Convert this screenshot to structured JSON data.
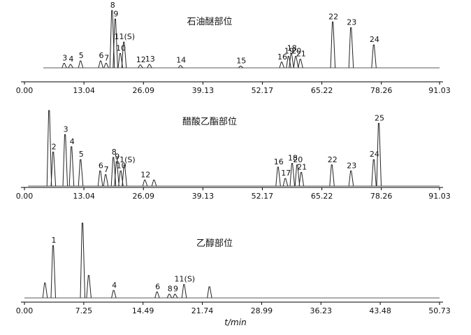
{
  "chart_data": [
    {
      "type": "chromatogram",
      "title": "石油醚部位",
      "xlim": [
        0,
        91.03
      ],
      "xticks": [
        {
          "value": 0,
          "label": "0.00"
        },
        13.04,
        26.09,
        39.13,
        52.17,
        65.22,
        78.26,
        91.03
      ],
      "color": "#222",
      "peaks": [
        {
          "label": "3",
          "x": 8.7,
          "height": 8
        },
        {
          "label": "4",
          "x": 10.1,
          "height": 6
        },
        {
          "label": "5",
          "x": 12.3,
          "height": 12
        },
        {
          "label": "6",
          "x": 16.7,
          "height": 12
        },
        {
          "label": "7",
          "x": 17.9,
          "height": 8
        },
        {
          "label": "8",
          "x": 19.2,
          "height": 100
        },
        {
          "label": "9",
          "x": 19.9,
          "height": 85
        },
        {
          "label": "10",
          "x": 21.0,
          "height": 25
        },
        {
          "label": "11(S)",
          "x": 21.8,
          "height": 45
        },
        {
          "label": "12",
          "x": 25.4,
          "height": 5
        },
        {
          "label": "13",
          "x": 27.4,
          "height": 6
        },
        {
          "label": "14",
          "x": 34.2,
          "height": 4
        },
        {
          "label": "15",
          "x": 47.4,
          "height": 3
        },
        {
          "label": "16",
          "x": 56.4,
          "height": 10
        },
        {
          "label": "19",
          "x": 57.9,
          "height": 20
        },
        {
          "label": "18",
          "x": 58.5,
          "height": 25
        },
        {
          "label": "20",
          "x": 59.5,
          "height": 20
        },
        {
          "label": "21",
          "x": 60.5,
          "height": 15
        },
        {
          "label": "22",
          "x": 67.6,
          "height": 80
        },
        {
          "label": "23",
          "x": 71.6,
          "height": 70
        },
        {
          "label": "24",
          "x": 76.6,
          "height": 40
        }
      ]
    },
    {
      "type": "chromatogram",
      "title": "醋酸乙酯部位",
      "xlim": [
        0,
        91.03
      ],
      "xticks": [
        {
          "value": 0,
          "label": "0.00"
        },
        13.04,
        26.09,
        39.13,
        52.17,
        65.22,
        78.26,
        91.03
      ],
      "color": "#222",
      "peaks": [
        {
          "label": null,
          "x": 5.4,
          "height": 100
        },
        {
          "label": "2",
          "x": 6.3,
          "height": 45
        },
        {
          "label": "3",
          "x": 8.9,
          "height": 68
        },
        {
          "label": "4",
          "x": 10.3,
          "height": 52
        },
        {
          "label": "5",
          "x": 12.3,
          "height": 35
        },
        {
          "label": "6",
          "x": 16.6,
          "height": 20
        },
        {
          "label": "7",
          "x": 17.8,
          "height": 15
        },
        {
          "label": "8",
          "x": 19.5,
          "height": 38
        },
        {
          "label": "9",
          "x": 20.2,
          "height": 32
        },
        {
          "label": "10",
          "x": 21.1,
          "height": 20
        },
        {
          "label": "11(S)",
          "x": 21.9,
          "height": 28
        },
        {
          "label": "12",
          "x": 26.4,
          "height": 8
        },
        {
          "label": null,
          "x": 28.4,
          "height": 8
        },
        {
          "label": "16",
          "x": 55.6,
          "height": 25
        },
        {
          "label": "17",
          "x": 57.2,
          "height": 10
        },
        {
          "label": "18",
          "x": 58.7,
          "height": 30
        },
        {
          "label": "20",
          "x": 59.8,
          "height": 28
        },
        {
          "label": "21",
          "x": 60.7,
          "height": 18
        },
        {
          "label": "22",
          "x": 67.4,
          "height": 28
        },
        {
          "label": "23",
          "x": 71.6,
          "height": 20
        },
        {
          "label": "24",
          "x": 76.6,
          "height": 35
        },
        {
          "label": "25",
          "x": 77.7,
          "height": 83
        }
      ]
    },
    {
      "type": "chromatogram",
      "title": "乙醇部位",
      "xlim": [
        0,
        50.73
      ],
      "xlabel": "t/min",
      "xticks": [
        {
          "value": 0,
          "label": "0.00"
        },
        7.25,
        14.49,
        21.74,
        28.99,
        36.23,
        43.48,
        50.73
      ],
      "color": "#222",
      "peaks": [
        {
          "label": null,
          "x": 2.5,
          "height": 20
        },
        {
          "label": "1",
          "x": 3.5,
          "height": 70
        },
        {
          "label": null,
          "x": 7.09,
          "height": 100
        },
        {
          "label": null,
          "x": 7.85,
          "height": 30
        },
        {
          "label": "4",
          "x": 10.9,
          "height": 10
        },
        {
          "label": "6",
          "x": 16.2,
          "height": 8
        },
        {
          "label": "8",
          "x": 17.7,
          "height": 5
        },
        {
          "label": "9",
          "x": 18.4,
          "height": 5
        },
        {
          "label": "11(S)",
          "x": 19.5,
          "height": 18
        },
        {
          "label": null,
          "x": 22.6,
          "height": 15
        }
      ]
    }
  ]
}
